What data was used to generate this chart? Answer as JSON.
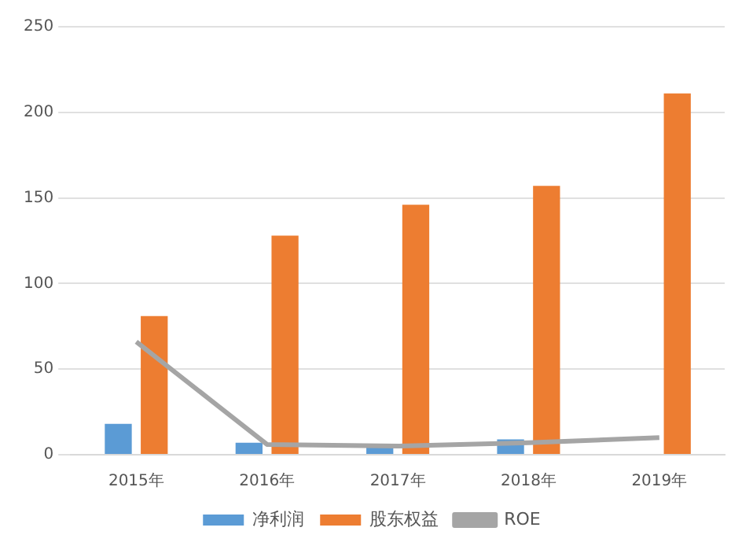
{
  "chart_data": {
    "type": "bar",
    "categories": [
      "2015年",
      "2016年",
      "2017年",
      "2018年",
      "2019年"
    ],
    "series": [
      {
        "name": "净利润",
        "color": "#5b9bd5",
        "values": [
          18,
          7,
          5,
          9,
          null
        ]
      },
      {
        "name": "股东权益",
        "color": "#ed7d31",
        "values": [
          81,
          128,
          146,
          157,
          211
        ]
      },
      {
        "name": "ROE",
        "type": "line",
        "color": "#a5a5a5",
        "values": [
          66,
          6,
          5,
          7,
          10
        ]
      }
    ],
    "ylim": [
      0,
      250
    ],
    "yticks": [
      0,
      50,
      100,
      150,
      200,
      250
    ],
    "grid": "y",
    "legend": "bottom",
    "marker": "none"
  }
}
